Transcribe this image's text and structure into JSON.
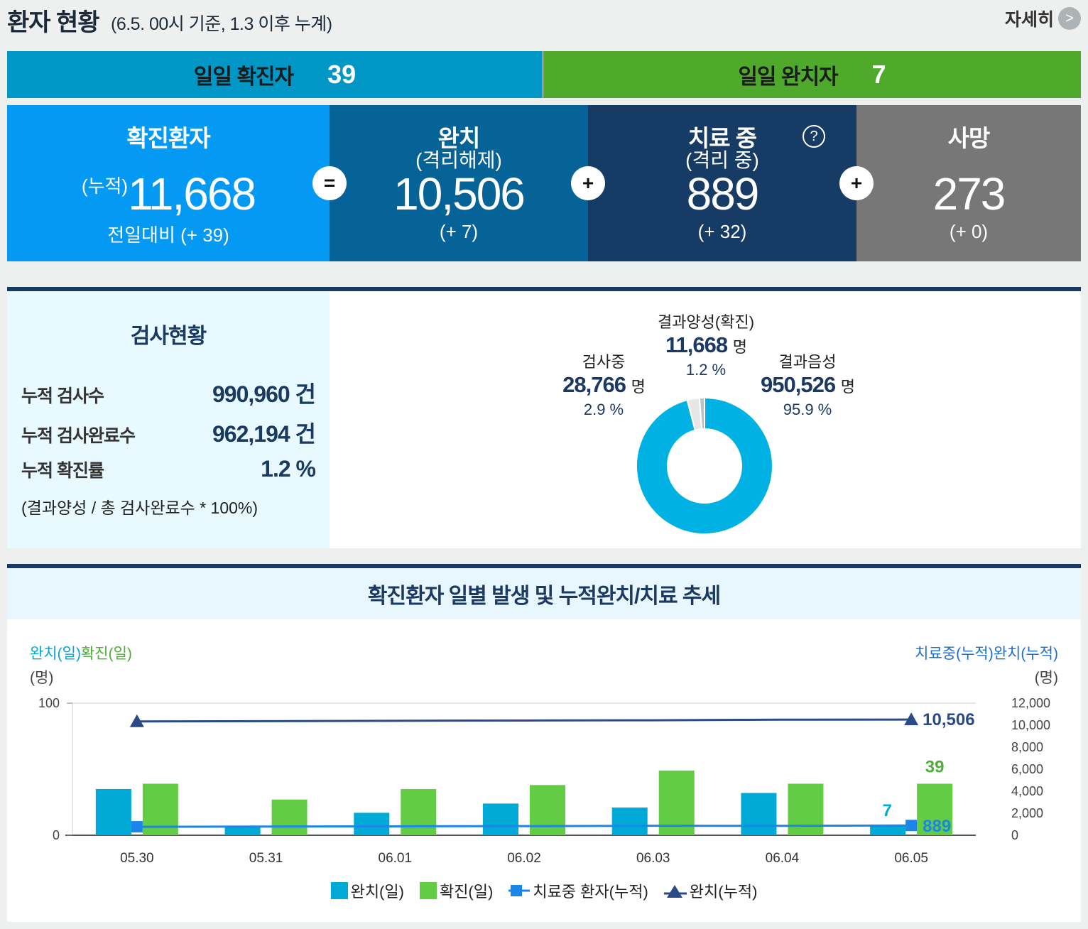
{
  "header": {
    "title": "환자 현황",
    "subtitle": "(6.5. 00시 기준, 1.3 이후 누계)",
    "more_label": "자세히",
    "more_arrow": ">"
  },
  "daily": {
    "confirmed_label": "일일 확진자",
    "confirmed_value": "39",
    "released_label": "일일 완치자",
    "released_value": "7"
  },
  "summary": {
    "confirmed": {
      "title": "확진환자",
      "prefix": "(누적)",
      "value": "11,668",
      "delta": "전일대비 (+ 39)"
    },
    "released": {
      "title": "완치",
      "title2": "(격리해제)",
      "value": "10,506",
      "delta": "(+ 7)"
    },
    "isolated": {
      "title": "치료 중",
      "title2": "(격리 중)",
      "value": "889",
      "delta": "(+ 32)",
      "help": "?"
    },
    "deceased": {
      "title": "사망",
      "value": "273",
      "delta": "(+ 0)"
    },
    "op_eq": "=",
    "op_plus": "+"
  },
  "tests": {
    "title": "검사현황",
    "rows": [
      {
        "label": "누적 검사수",
        "value": "990,960 건"
      },
      {
        "label": "누적 검사완료수",
        "value": "962,194 건"
      },
      {
        "label": "누적 확진률",
        "value": "1.2 %"
      }
    ],
    "note": "(결과양성 / 총 검사완료수 * 100%)",
    "pie": {
      "positive": {
        "label": "결과양성(확진)",
        "value": "11,668",
        "unit": "명",
        "pct": "1.2 %"
      },
      "testing": {
        "label": "검사중",
        "value": "28,766",
        "unit": "명",
        "pct": "2.9 %"
      },
      "negative": {
        "label": "결과음성",
        "value": "950,526",
        "unit": "명",
        "pct": "95.9 %"
      }
    }
  },
  "trend": {
    "title": "확진환자 일별 발생 및 누적완치/치료 추세",
    "left_axis_a": "완치(일)",
    "left_axis_b": "확진(일)",
    "left_unit": "(명)",
    "right_axis_a": "치료중(누적)",
    "right_axis_b": "완치(누적)",
    "right_unit": "(명)",
    "legend": [
      "완치(일)",
      "확진(일)",
      "치료중 환자(누적)",
      "완치(누적)"
    ],
    "label_released_day": "7",
    "label_confirmed_day": "39",
    "label_released_cum": "10,506",
    "label_isolated_cum": "889"
  },
  "colors": {
    "released_day": "#00a9d6",
    "confirmed_day": "#62cc45",
    "isolated_cum": "#1b86e8",
    "released_cum": "#2c4a86"
  },
  "chart_data": [
    {
      "type": "pie",
      "title": "",
      "categories": [
        "결과음성",
        "검사중",
        "결과양성(확진)"
      ],
      "values": [
        950526,
        28766,
        11668
      ],
      "percents": [
        95.9,
        2.9,
        1.2
      ]
    },
    {
      "type": "bar",
      "title": "확진환자 일별 발생 및 누적완치/치료 추세",
      "categories": [
        "05.30",
        "05.31",
        "06.01",
        "06.02",
        "06.03",
        "06.04",
        "06.05"
      ],
      "series": [
        {
          "name": "완치(일)",
          "axis": "left",
          "values": [
            35,
            7,
            17,
            24,
            21,
            32,
            7
          ]
        },
        {
          "name": "확진(일)",
          "axis": "left",
          "values": [
            39,
            27,
            35,
            38,
            49,
            39,
            39
          ]
        },
        {
          "name": "치료중 환자(누적)",
          "axis": "right",
          "type": "line",
          "values": [
            770,
            790,
            810,
            830,
            860,
            857,
            889
          ]
        },
        {
          "name": "완치(누적)",
          "axis": "right",
          "type": "line",
          "values": [
            10340,
            10363,
            10398,
            10422,
            10447,
            10499,
            10506
          ]
        }
      ],
      "ylim_left": [
        0,
        100
      ],
      "yticks_left": [
        "0",
        "100"
      ],
      "ylim_right": [
        0,
        12000
      ],
      "yticks_right": [
        "0",
        "2,000",
        "4,000",
        "6,000",
        "8,000",
        "10,000",
        "12,000"
      ]
    }
  ]
}
